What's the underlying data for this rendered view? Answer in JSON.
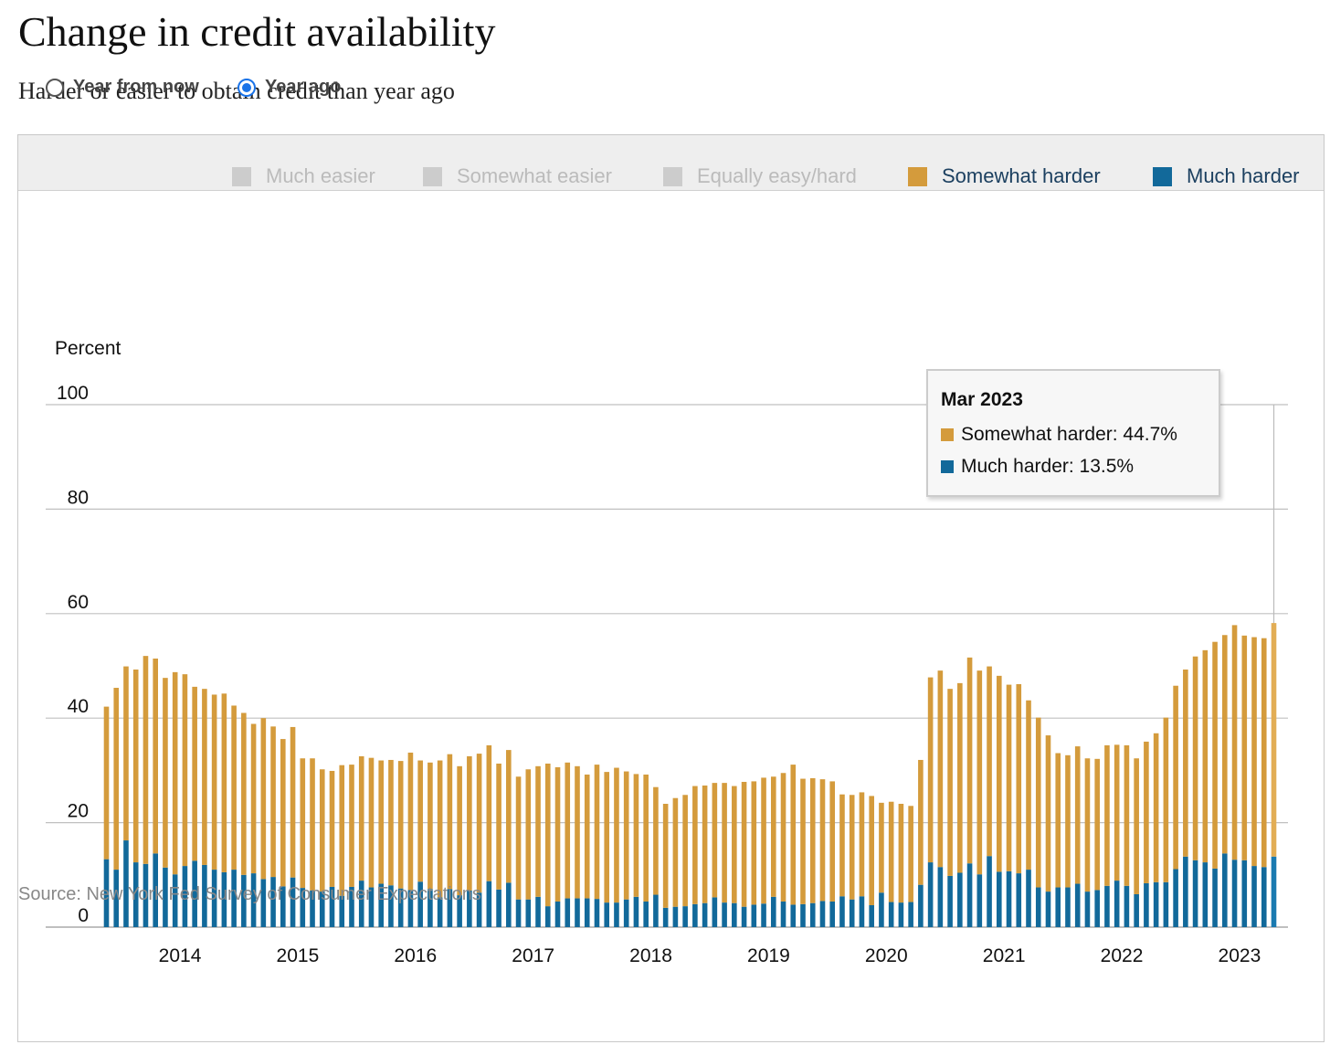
{
  "header": {
    "title": "Change in credit availability",
    "subtitle": "Harder or easier to obtain credit than year ago"
  },
  "controls": {
    "radios": [
      {
        "label": "Year from now",
        "selected": false
      },
      {
        "label": "Year ago",
        "selected": true
      }
    ]
  },
  "legend": [
    {
      "label": "Much easier",
      "color": "#cccccc",
      "active": false
    },
    {
      "label": "Somewhat easier",
      "color": "#cccccc",
      "active": false
    },
    {
      "label": "Equally easy/hard",
      "color": "#cccccc",
      "active": false
    },
    {
      "label": "Somewhat harder",
      "color": "#d49b3c",
      "active": true
    },
    {
      "label": "Much harder",
      "color": "#12699a",
      "active": true
    }
  ],
  "tooltip": {
    "title": "Mar 2023",
    "rows": [
      {
        "label": "Somewhat harder: 44.7%",
        "color": "#d49b3c"
      },
      {
        "label": "Much harder: 13.5%",
        "color": "#12699a"
      }
    ]
  },
  "source": "Source: New York Fed Survey of Consumer Expectations",
  "colors": {
    "somewhat_harder": "#d49b3c",
    "much_harder": "#12699a",
    "highlight_somewhat": "#e2ad55",
    "highlight_much": "#1a7ab0",
    "grid": "#c0c0c0",
    "inactive_legend_text": "#bbbbbb",
    "active_legend_text": "#1c4060"
  },
  "chart_data": {
    "type": "bar",
    "stacked": true,
    "ylabel": "Percent",
    "ylim": [
      0,
      100
    ],
    "yticks": [
      0,
      20,
      40,
      60,
      80,
      100
    ],
    "grid": true,
    "legend_position": "top",
    "xtick_labels": [
      "2014",
      "2015",
      "2016",
      "2017",
      "2018",
      "2019",
      "2020",
      "2021",
      "2022",
      "2023"
    ],
    "x_start": "Jun 2013",
    "x_end": "Mar 2023",
    "highlighted": "Mar 2023",
    "series": [
      {
        "name": "Much harder",
        "values": [
          13.0,
          11.0,
          16.6,
          12.4,
          12.1,
          14.1,
          11.4,
          10.1,
          11.7,
          12.7,
          11.9,
          11.0,
          10.5,
          11.0,
          10.0,
          10.3,
          9.2,
          9.6,
          7.8,
          9.5,
          7.5,
          7.0,
          6.8,
          7.7,
          6.0,
          7.7,
          8.9,
          7.6,
          8.3,
          8.0,
          7.4,
          7.1,
          8.7,
          7.3,
          5.7,
          7.3,
          6.1,
          7.0,
          6.6,
          8.8,
          7.2,
          8.5,
          5.3,
          5.3,
          5.8,
          4.0,
          4.9,
          5.5,
          5.5,
          5.5,
          5.4,
          4.7,
          4.7,
          5.3,
          5.8,
          4.9,
          6.2,
          3.7,
          3.9,
          4.0,
          4.4,
          4.6,
          5.7,
          4.7,
          4.6,
          3.9,
          4.3,
          4.5,
          5.8,
          4.9,
          4.3,
          4.4,
          4.6,
          5.0,
          4.9,
          5.9,
          5.3,
          5.9,
          4.2,
          6.6,
          4.8,
          4.7,
          4.8,
          8.1,
          12.4,
          11.5,
          9.8,
          10.4,
          12.2,
          10.1,
          13.6,
          10.6,
          10.7,
          10.3,
          11.0,
          7.6,
          6.8,
          7.6,
          7.6,
          8.3,
          6.8,
          7.1,
          7.9,
          8.9,
          7.9,
          6.3,
          8.4,
          8.6,
          8.6,
          11.1,
          13.5,
          12.8,
          12.4,
          11.2,
          14.1,
          12.9,
          12.8,
          11.7,
          11.5,
          13.5
        ]
      },
      {
        "name": "Somewhat harder",
        "values": [
          29.2,
          34.8,
          33.3,
          36.9,
          39.8,
          37.3,
          36.3,
          38.7,
          36.7,
          33.3,
          33.7,
          33.5,
          34.2,
          31.4,
          31.0,
          28.6,
          30.8,
          28.8,
          28.2,
          28.8,
          24.8,
          25.3,
          23.4,
          22.2,
          25.0,
          23.4,
          23.8,
          24.8,
          23.6,
          24.0,
          24.4,
          26.3,
          23.2,
          24.2,
          26.2,
          25.8,
          24.7,
          25.7,
          26.6,
          26.0,
          24.1,
          25.4,
          23.5,
          24.9,
          25.0,
          27.3,
          25.7,
          26.0,
          25.3,
          23.7,
          25.7,
          25.0,
          25.8,
          24.5,
          23.5,
          24.3,
          20.6,
          19.9,
          20.8,
          21.3,
          22.6,
          22.5,
          21.9,
          22.9,
          22.4,
          23.9,
          23.6,
          24.1,
          23.0,
          24.6,
          26.8,
          24.0,
          23.9,
          23.3,
          23.0,
          19.5,
          20.0,
          19.9,
          20.9,
          17.2,
          19.2,
          18.9,
          18.4,
          23.9,
          35.4,
          37.6,
          35.8,
          36.3,
          39.4,
          39.0,
          36.3,
          37.5,
          35.7,
          36.2,
          32.4,
          32.5,
          29.9,
          25.7,
          25.3,
          26.3,
          25.5,
          25.1,
          26.9,
          26.0,
          26.9,
          26.0,
          27.1,
          28.5,
          31.5,
          35.1,
          35.8,
          39.0,
          40.6,
          43.4,
          41.8,
          44.9,
          43.0,
          43.8,
          43.8,
          44.7
        ]
      }
    ]
  }
}
